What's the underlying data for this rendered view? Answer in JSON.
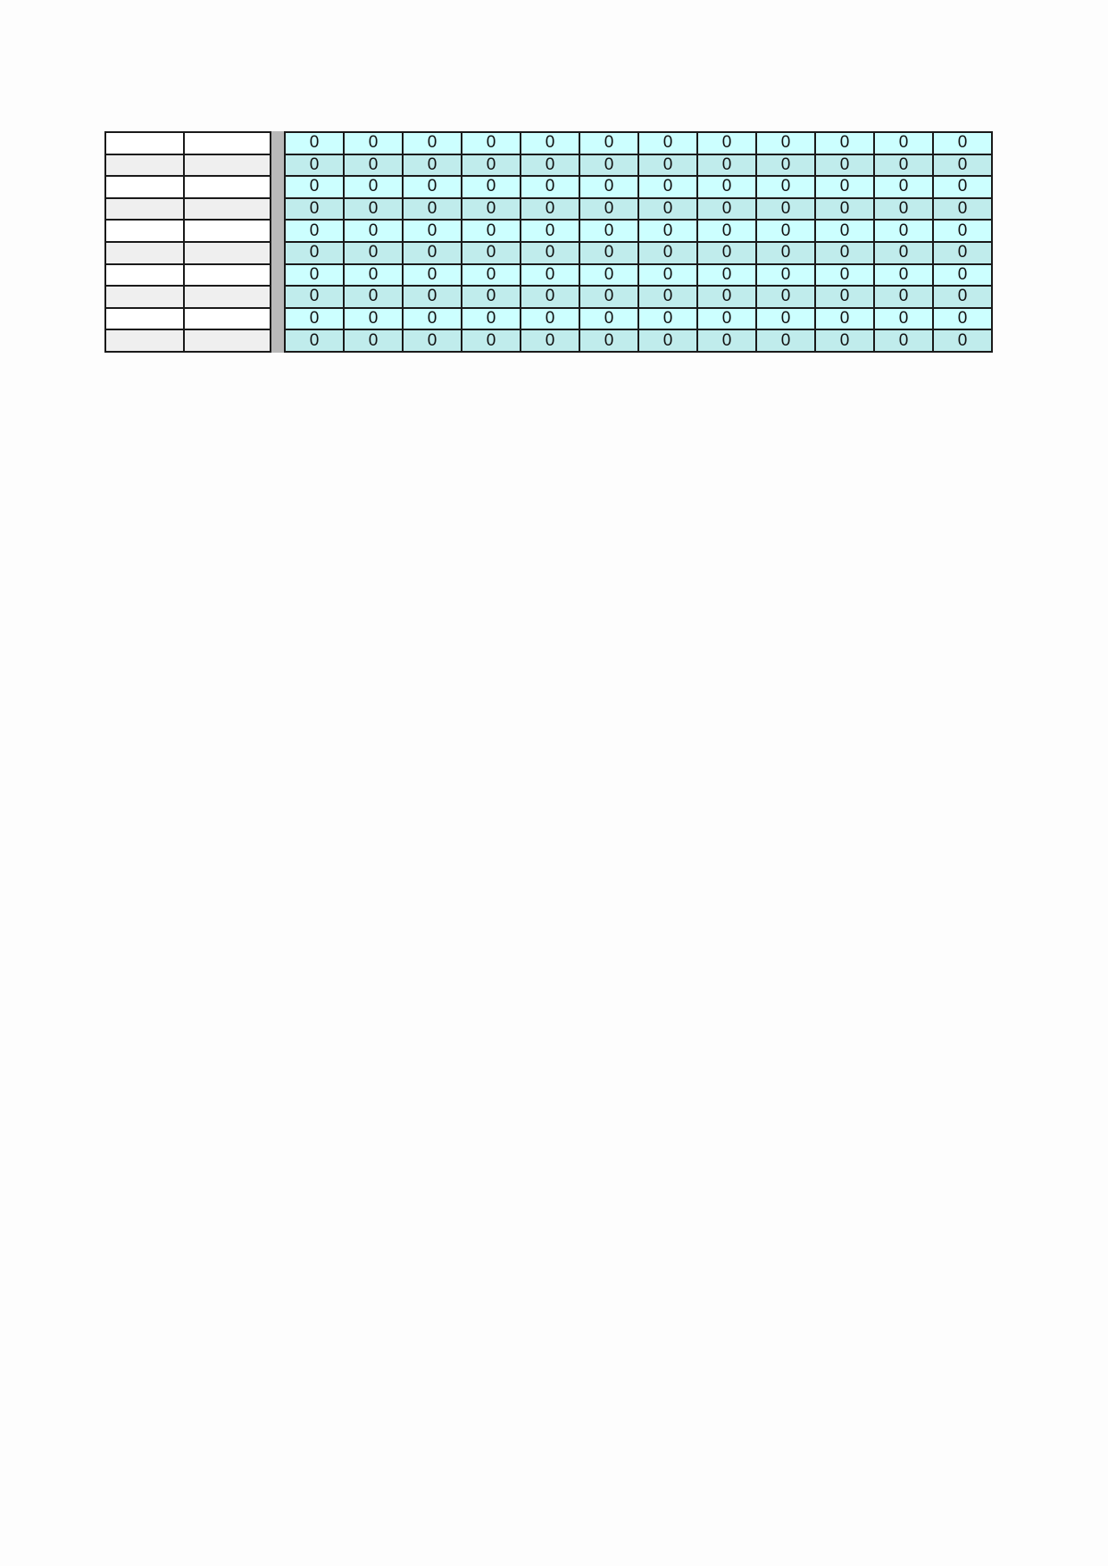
{
  "colors": {
    "teal_light": "#ccffff",
    "teal_dark": "#c0ecec",
    "gray_row": "#efefef",
    "separator": "#b9b9b9"
  },
  "left_rows": [
    [
      "",
      ""
    ],
    [
      "",
      ""
    ],
    [
      "",
      ""
    ],
    [
      "",
      ""
    ],
    [
      "",
      ""
    ],
    [
      "",
      ""
    ],
    [
      "",
      ""
    ],
    [
      "",
      ""
    ],
    [
      "",
      ""
    ],
    [
      "",
      ""
    ]
  ],
  "rows": [
    [
      "0",
      "0",
      "0",
      "0",
      "0",
      "0",
      "0",
      "0",
      "0",
      "0",
      "0",
      "0"
    ],
    [
      "0",
      "0",
      "0",
      "0",
      "0",
      "0",
      "0",
      "0",
      "0",
      "0",
      "0",
      "0"
    ],
    [
      "0",
      "0",
      "0",
      "0",
      "0",
      "0",
      "0",
      "0",
      "0",
      "0",
      "0",
      "0"
    ],
    [
      "0",
      "0",
      "0",
      "0",
      "0",
      "0",
      "0",
      "0",
      "0",
      "0",
      "0",
      "0"
    ],
    [
      "0",
      "0",
      "0",
      "0",
      "0",
      "0",
      "0",
      "0",
      "0",
      "0",
      "0",
      "0"
    ],
    [
      "0",
      "0",
      "0",
      "0",
      "0",
      "0",
      "0",
      "0",
      "0",
      "0",
      "0",
      "0"
    ],
    [
      "0",
      "0",
      "0",
      "0",
      "0",
      "0",
      "0",
      "0",
      "0",
      "0",
      "0",
      "0"
    ],
    [
      "0",
      "0",
      "0",
      "0",
      "0",
      "0",
      "0",
      "0",
      "0",
      "0",
      "0",
      "0"
    ],
    [
      "0",
      "0",
      "0",
      "0",
      "0",
      "0",
      "0",
      "0",
      "0",
      "0",
      "0",
      "0"
    ],
    [
      "0",
      "0",
      "0",
      "0",
      "0",
      "0",
      "0",
      "0",
      "0",
      "0",
      "0",
      "0"
    ]
  ]
}
